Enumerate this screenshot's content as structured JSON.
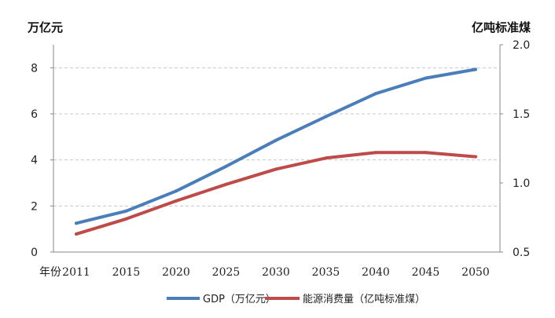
{
  "chart_data": {
    "type": "line",
    "title": "",
    "xlabel": "年份",
    "categories": [
      "2011",
      "2015",
      "2020",
      "2025",
      "2030",
      "2035",
      "2040",
      "2045",
      "2050"
    ],
    "left_axis": {
      "unit_label": "万亿元",
      "ylim": [
        0,
        9
      ],
      "ticks": [
        0,
        2,
        4,
        6,
        8
      ],
      "tick_labels": [
        "0",
        "2",
        "4",
        "6",
        "8"
      ]
    },
    "right_axis": {
      "unit_label": "亿吨标准煤",
      "ylim": [
        0.5,
        2.0
      ],
      "ticks": [
        0.5,
        1.0,
        1.5,
        2.0
      ],
      "tick_labels": [
        "0.5",
        "1.0",
        "1.5",
        "2.0"
      ]
    },
    "grid": true,
    "legend_position": "bottom",
    "series": [
      {
        "name": "GDP",
        "legend_label": "GDP（万亿元）",
        "axis": "left",
        "color": "#4a7ebb",
        "values": [
          1.25,
          1.78,
          2.65,
          3.72,
          4.85,
          5.88,
          6.88,
          7.55,
          7.93
        ]
      },
      {
        "name": "能源消费量",
        "legend_label": "能源消费量（亿吨标准煤）",
        "axis": "right",
        "color": "#be4b48",
        "values": [
          0.63,
          0.74,
          0.87,
          0.99,
          1.1,
          1.18,
          1.22,
          1.22,
          1.19
        ]
      }
    ]
  }
}
